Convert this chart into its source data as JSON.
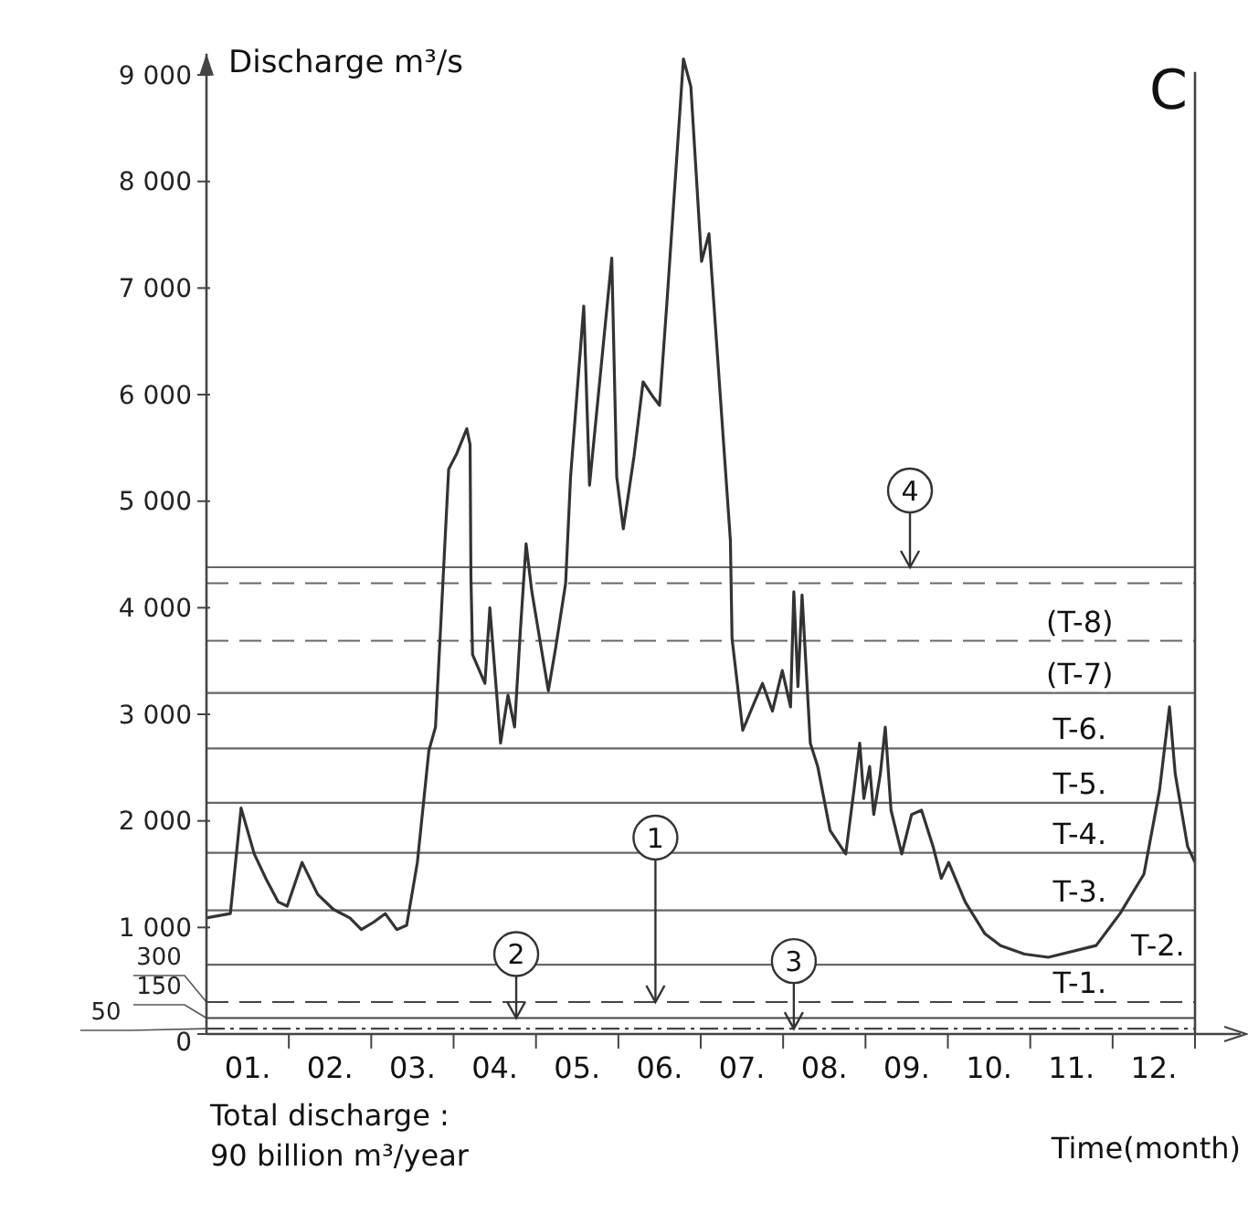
{
  "chart_data": {
    "type": "line",
    "ylabel": "Discharge m³/s",
    "xlabel": "Time(month)",
    "x": [
      0,
      0.29,
      0.42,
      0.58,
      0.72,
      0.87,
      0.98,
      1.16,
      1.35,
      1.54,
      1.74,
      1.88,
      2.03,
      2.17,
      2.31,
      2.43,
      2.56,
      2.7,
      2.78,
      2.84,
      2.94,
      3.04,
      3.16,
      3.2,
      3.21,
      3.23,
      3.38,
      3.44,
      3.57,
      3.66,
      3.74,
      3.81,
      3.88,
      3.95,
      4.15,
      4.24,
      4.36,
      4.42,
      4.58,
      4.65,
      4.92,
      4.98,
      5.06,
      5.19,
      5.3,
      5.42,
      5.5,
      5.59,
      5.79,
      5.88,
      6.01,
      6.1,
      6.36,
      6.38,
      6.51,
      6.65,
      6.75,
      6.87,
      6.99,
      7.09,
      7.13,
      7.18,
      7.23,
      7.33,
      7.42,
      7.57,
      7.76,
      7.86,
      7.93,
      7.98,
      8.05,
      8.1,
      8.18,
      8.24,
      8.31,
      8.44,
      8.56,
      8.68,
      8.82,
      8.92,
      9.01,
      9.21,
      9.45,
      9.64,
      9.93,
      10.22,
      10.8,
      11.09,
      11.38,
      11.57,
      11.69,
      11.76,
      11.91,
      12
    ],
    "series": [
      {
        "color": "#333333",
        "values": [
          1090,
          1130,
          2120,
          1690,
          1460,
          1240,
          1200,
          1610,
          1310,
          1170,
          1090,
          980,
          1050,
          1130,
          980,
          1020,
          1610,
          2660,
          2880,
          3780,
          5300,
          5450,
          5680,
          5530,
          4300,
          3560,
          3290,
          4000,
          2730,
          3180,
          2880,
          3780,
          4600,
          4150,
          3220,
          3630,
          4230,
          5230,
          6830,
          5150,
          7280,
          5230,
          4740,
          5420,
          6120,
          5980,
          5900,
          6870,
          9150,
          8890,
          7250,
          7510,
          4630,
          3710,
          2850,
          3110,
          3290,
          3030,
          3410,
          3070,
          4150,
          3260,
          4120,
          2730,
          2510,
          1910,
          1690,
          2290,
          2730,
          2210,
          2510,
          2060,
          2440,
          2880,
          2100,
          1690,
          2060,
          2100,
          1760,
          1460,
          1610,
          1240,
          940,
          830,
          750,
          720,
          830,
          1130,
          1500,
          2290,
          3070,
          2440,
          1760,
          1610
        ]
      }
    ],
    "xlim": [
      0,
      12
    ],
    "xticks": [
      {
        "value": 0.5,
        "label": "01."
      },
      {
        "value": 1,
        "label": null
      },
      {
        "value": 1.5,
        "label": "02."
      },
      {
        "value": 2,
        "label": null
      },
      {
        "value": 2.5,
        "label": "03."
      },
      {
        "value": 3,
        "label": null
      },
      {
        "value": 3.5,
        "label": "04."
      },
      {
        "value": 4,
        "label": null
      },
      {
        "value": 4.5,
        "label": "05."
      },
      {
        "value": 5,
        "label": null
      },
      {
        "value": 5.5,
        "label": "06."
      },
      {
        "value": 6,
        "label": null
      },
      {
        "value": 6.5,
        "label": "07."
      },
      {
        "value": 7,
        "label": null
      },
      {
        "value": 7.5,
        "label": "08."
      },
      {
        "value": 8,
        "label": null
      },
      {
        "value": 8.5,
        "label": "09."
      },
      {
        "value": 9,
        "label": null
      },
      {
        "value": 9.5,
        "label": "10."
      },
      {
        "value": 10,
        "label": null
      },
      {
        "value": 10.5,
        "label": "11."
      },
      {
        "value": 11,
        "label": null
      },
      {
        "value": 11.5,
        "label": "12."
      },
      {
        "value": 12,
        "label": null
      }
    ],
    "ylim": [
      0,
      9200
    ],
    "yticks": [
      0,
      {
        "value": 1000,
        "label": "1 000"
      },
      {
        "value": 2000,
        "label": "2 000"
      },
      {
        "value": 3000,
        "label": "3 000"
      },
      {
        "value": 4000,
        "label": "4 000"
      },
      {
        "value": 5000,
        "label": "5 000"
      },
      {
        "value": 6000,
        "label": "6 000"
      },
      {
        "value": 7000,
        "label": "7 000"
      },
      {
        "value": 8000,
        "label": "8 000"
      },
      {
        "value": 9000,
        "label": "9 000"
      }
    ],
    "grid": false,
    "marker": "none",
    "line_style": "solid",
    "ref_lines": [
      {
        "axis": "y",
        "value": 4380,
        "line_style": "solid",
        "color": "#666666"
      },
      {
        "axis": "y",
        "value": 4230,
        "line_style": "dashed",
        "color": "#666666"
      },
      {
        "axis": "y",
        "value": 3690,
        "label": "(T-8)",
        "line_style": "dashed",
        "color": "#666666"
      },
      {
        "axis": "y",
        "value": 3200,
        "label": "(T-7)",
        "line_style": "solid",
        "color": "#666666"
      },
      {
        "axis": "y",
        "value": 2680,
        "label": "T-6.",
        "line_style": "solid",
        "color": "#666666"
      },
      {
        "axis": "y",
        "value": 2170,
        "label": "T-5.",
        "line_style": "solid",
        "color": "#666666"
      },
      {
        "axis": "y",
        "value": 1700,
        "label": "T-4.",
        "line_style": "solid",
        "color": "#666666"
      },
      {
        "axis": "y",
        "value": 1160,
        "label": "T-3.",
        "line_style": "solid",
        "color": "#666666"
      },
      {
        "axis": "y",
        "value": 650,
        "label": "T-2.",
        "line_style": "solid",
        "color": "#666666"
      },
      {
        "axis": "y",
        "value": 300,
        "label": "300",
        "line_style": "dashed",
        "color": "#444444"
      },
      {
        "axis": "y",
        "value": 150,
        "label": "150",
        "line_style": "solid",
        "color": "#444444"
      },
      {
        "axis": "y",
        "value": 50,
        "label": "50",
        "line_style": "dotted",
        "color": "#444444"
      }
    ],
    "annotations": [
      {
        "text": "T-1.",
        "x": 10.6,
        "y": 300
      },
      {
        "text": "1",
        "x": 5.45,
        "y": 300
      },
      {
        "text": "2",
        "x": 3.76,
        "y": 150
      },
      {
        "text": "3",
        "x": 7.13,
        "y": 50
      },
      {
        "text": "4",
        "x": 8.54,
        "y": 4380
      },
      "C",
      "Total discharge :\n90 billion m³/year"
    ]
  }
}
